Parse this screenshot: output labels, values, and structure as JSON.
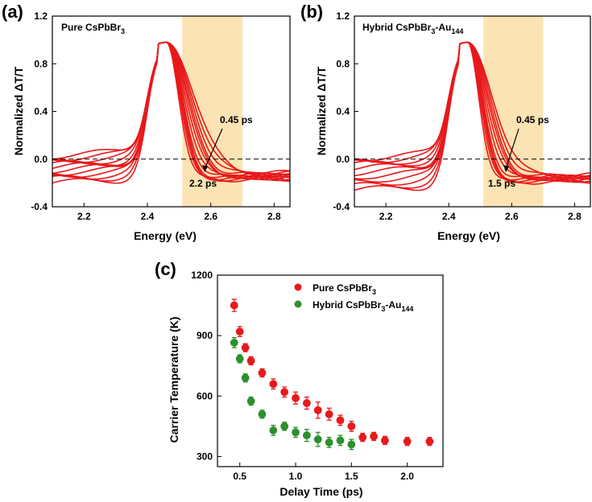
{
  "chart_data": [
    {
      "type": "line",
      "panel": "(a)",
      "title": "Pure CsPbBr",
      "title_sub": "3",
      "xlabel": "Energy (eV)",
      "ylabel": "Normalized ΔT/T",
      "xlim": [
        2.1,
        2.85
      ],
      "ylim": [
        -0.4,
        1.2
      ],
      "xticks": [
        "2.2",
        "2.4",
        "2.6",
        "2.8"
      ],
      "yticks": [
        "-0.4",
        "0.0",
        "0.4",
        "0.8",
        "1.2"
      ],
      "shaded_x": [
        2.51,
        2.7
      ],
      "zero_line": 0,
      "annotation_start": "0.45 ps",
      "annotation_end": "2.2 ps",
      "series_color": "#e8191b",
      "shade_color": "#fbe3b4",
      "curves": {
        "peak_x": 2.46,
        "tail_start": [
          -0.2,
          -0.17,
          -0.15,
          -0.13,
          -0.11,
          -0.09,
          -0.07,
          -0.05,
          -0.03,
          -0.01,
          0.01,
          0.03
        ],
        "tail_end": [
          -0.17,
          -0.165,
          -0.16,
          -0.155,
          -0.15,
          -0.145,
          -0.14,
          -0.135,
          -0.13,
          -0.125,
          -0.12,
          -0.115
        ],
        "zero_cross": [
          2.59,
          2.6,
          2.61,
          2.62,
          2.63,
          2.645,
          2.66,
          2.675,
          2.69,
          2.71,
          2.73,
          2.75
        ]
      }
    },
    {
      "type": "line",
      "panel": "(b)",
      "title": "Hybrid CsPbBr",
      "title_sub": "3",
      "title_suffix": "-Au",
      "title_sub2": "144",
      "xlabel": "Energy (eV)",
      "ylabel": "Normalized ΔT/T",
      "xlim": [
        2.1,
        2.85
      ],
      "ylim": [
        -0.4,
        1.2
      ],
      "xticks": [
        "2.2",
        "2.4",
        "2.6",
        "2.8"
      ],
      "yticks": [
        "-0.4",
        "0.0",
        "0.4",
        "0.8",
        "1.2"
      ],
      "shaded_x": [
        2.51,
        2.7
      ],
      "zero_line": 0,
      "annotation_start": "0.45 ps",
      "annotation_end": "1.5 ps",
      "series_color": "#e8191b",
      "shade_color": "#fbe3b4",
      "curves": {
        "peak_x": 2.46,
        "tail_start": [
          -0.26,
          -0.23,
          -0.2,
          -0.17,
          -0.14,
          -0.11,
          -0.08,
          -0.05,
          -0.03,
          -0.01,
          0.01
        ],
        "tail_end": [
          -0.19,
          -0.18,
          -0.175,
          -0.17,
          -0.165,
          -0.16,
          -0.155,
          -0.15,
          -0.145,
          -0.14,
          -0.135
        ],
        "zero_cross": [
          2.58,
          2.59,
          2.6,
          2.61,
          2.62,
          2.635,
          2.65,
          2.665,
          2.68,
          2.7,
          2.72
        ]
      }
    },
    {
      "type": "scatter",
      "panel": "(c)",
      "xlabel": "Delay Time (ps)",
      "ylabel": "Carrier Temperature (K)",
      "xlim": [
        0.3,
        2.32
      ],
      "ylim": [
        250,
        1200
      ],
      "xticks": [
        "0.5",
        "1.0",
        "1.5",
        "2.0"
      ],
      "yticks": [
        "300",
        "600",
        "900",
        "1200"
      ],
      "series": [
        {
          "name": "Pure CsPbBr",
          "name_sub": "3",
          "color": "#e8191b",
          "x": [
            0.45,
            0.5,
            0.55,
            0.6,
            0.7,
            0.8,
            0.9,
            1.0,
            1.1,
            1.2,
            1.3,
            1.4,
            1.5,
            1.6,
            1.7,
            1.8,
            2.0,
            2.2
          ],
          "y": [
            1050,
            920,
            840,
            775,
            715,
            660,
            620,
            590,
            565,
            530,
            510,
            480,
            450,
            395,
            400,
            380,
            375,
            375
          ],
          "err": [
            30,
            25,
            20,
            20,
            20,
            25,
            25,
            30,
            30,
            40,
            30,
            25,
            25,
            20,
            20,
            20,
            20,
            20
          ]
        },
        {
          "name": "Hybrid CsPbBr",
          "name_sub": "3",
          "name_suffix": "-Au",
          "name_sub2": "144",
          "color": "#2d8f2e",
          "x": [
            0.45,
            0.5,
            0.55,
            0.6,
            0.7,
            0.8,
            0.9,
            1.0,
            1.1,
            1.2,
            1.3,
            1.4,
            1.5
          ],
          "y": [
            865,
            785,
            690,
            575,
            510,
            430,
            450,
            420,
            405,
            385,
            370,
            380,
            360
          ],
          "err": [
            25,
            20,
            20,
            20,
            20,
            25,
            20,
            25,
            30,
            35,
            25,
            25,
            25
          ]
        }
      ]
    }
  ]
}
